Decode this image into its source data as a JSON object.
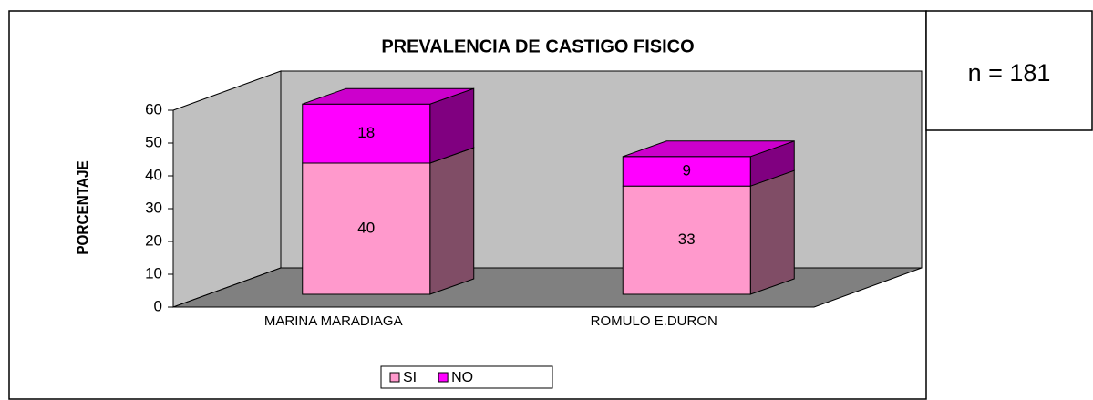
{
  "chart_data": {
    "type": "bar3d_stacked",
    "title": "PREVALENCIA DE CASTIGO FISICO",
    "y_label": "PORCENTAJE",
    "annotation": "n = 181",
    "categories": [
      "MARINA MARADIAGA",
      "ROMULO E.DURON"
    ],
    "series": [
      {
        "name": "SI",
        "color": "#ff99cc",
        "values": [
          40,
          33
        ]
      },
      {
        "name": "NO",
        "color": "#ff00ff",
        "values": [
          18,
          9
        ]
      }
    ],
    "ylim": [
      0,
      60
    ],
    "yticks": [
      0,
      10,
      20,
      30,
      40,
      50,
      60
    ],
    "wall_color": "#c0c0c0",
    "floor_color": "#808080"
  }
}
